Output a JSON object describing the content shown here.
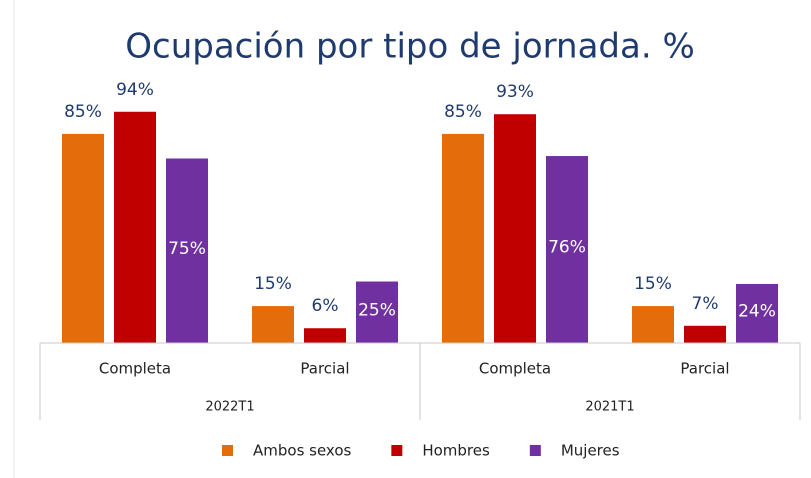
{
  "chart_data": {
    "type": "bar",
    "title": "Ocupación por tipo de jornada. %",
    "categories": [
      "Completa",
      "Parcial",
      "Completa",
      "Parcial"
    ],
    "groups": [
      "2022T1",
      "2021T1"
    ],
    "series": [
      {
        "name": "Ambos sexos",
        "color": "#e46c0a",
        "values": [
          85,
          15,
          85,
          15
        ],
        "value_labels": [
          "85%",
          "15%",
          "85%",
          "15%"
        ]
      },
      {
        "name": "Hombres",
        "color": "#c00000",
        "values": [
          94,
          6,
          93,
          7
        ],
        "value_labels": [
          "94%",
          "6%",
          "93%",
          "7%"
        ]
      },
      {
        "name": "Mujeres",
        "color": "#7030a0",
        "values": [
          75,
          25,
          76,
          24
        ],
        "value_labels": [
          "75%",
          "25%",
          "76%",
          "24%"
        ]
      }
    ]
  }
}
